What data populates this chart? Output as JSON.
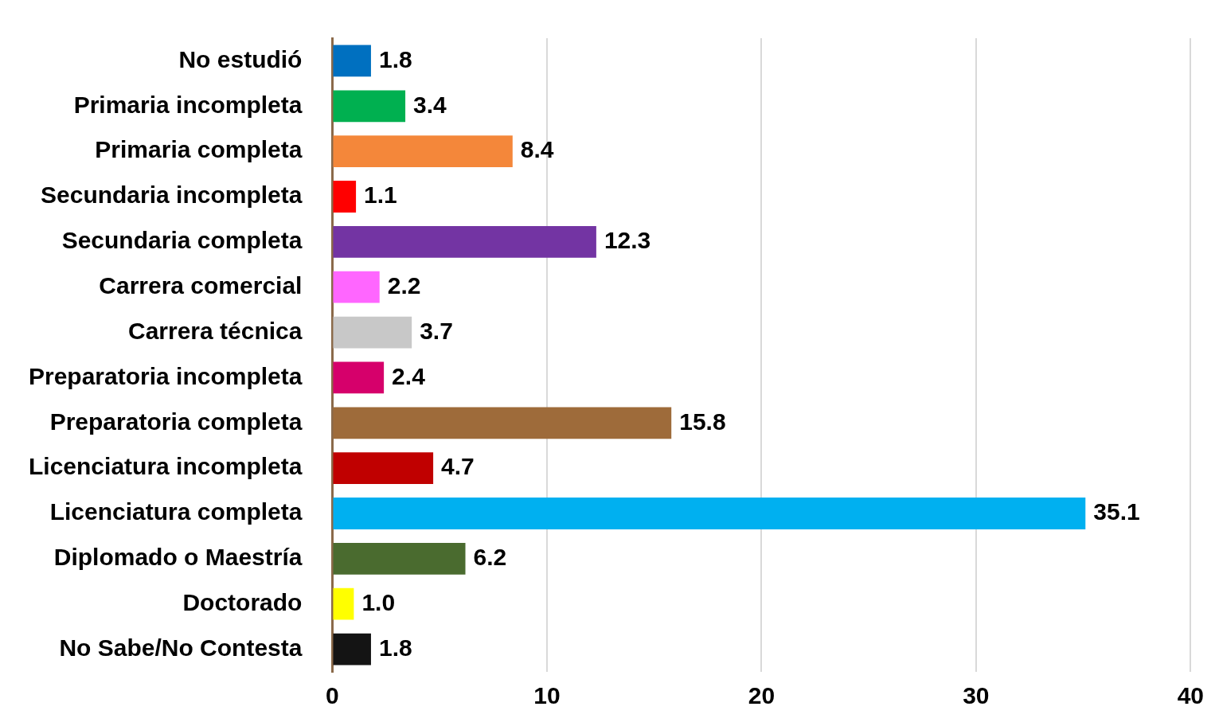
{
  "chart_data": {
    "type": "bar",
    "orientation": "horizontal",
    "categories": [
      "No estudió",
      "Primaria incompleta",
      "Primaria completa",
      "Secundaria incompleta",
      "Secundaria completa",
      "Carrera comercial",
      "Carrera técnica",
      "Preparatoria incompleta",
      "Preparatoria completa",
      "Licenciatura incompleta",
      "Licenciatura completa",
      "Diplomado o Maestría",
      "Doctorado",
      "No Sabe/No Contesta"
    ],
    "values": [
      1.8,
      3.4,
      8.4,
      1.1,
      12.3,
      2.2,
      3.7,
      2.4,
      15.8,
      4.7,
      35.1,
      6.2,
      1.0,
      1.8
    ],
    "value_labels": [
      "1.8",
      "3.4",
      "8.4",
      "1.1",
      "12.3",
      "2.2",
      "3.7",
      "2.4",
      "15.8",
      "4.7",
      "35.1",
      "6.2",
      "1.0",
      "1.8"
    ],
    "colors": [
      "#0070c0",
      "#00b050",
      "#f4873a",
      "#ff0000",
      "#7334a3",
      "#ff66ff",
      "#c8c8c8",
      "#d6006b",
      "#9e6b3a",
      "#c00000",
      "#00b0f0",
      "#4a6b2f",
      "#ffff00",
      "#141414"
    ],
    "xlim": [
      0,
      40
    ],
    "xticks": [
      0,
      10,
      20,
      30,
      40
    ],
    "grid": "x",
    "legend": false
  }
}
